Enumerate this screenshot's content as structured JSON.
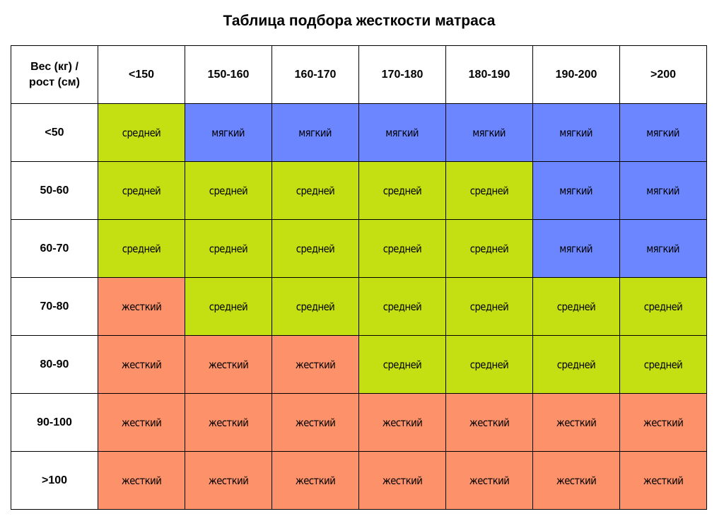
{
  "title": "Таблица подбора жесткости матраса",
  "corner_header": [
    "Вес (кг) /",
    "рост (см)"
  ],
  "columns": [
    "<150",
    "150-160",
    "160-170",
    "170-180",
    "180-190",
    "190-200",
    ">200"
  ],
  "levels": {
    "soft": {
      "label": "мягкий",
      "color": "#6b86ff"
    },
    "medium": {
      "label": "средней",
      "color": "#c5e012"
    },
    "hard": {
      "label": "жесткий",
      "color": "#fd9169"
    }
  },
  "rows": [
    {
      "weight": "<50",
      "cells": [
        "medium",
        "soft",
        "soft",
        "soft",
        "soft",
        "soft",
        "soft"
      ]
    },
    {
      "weight": "50-60",
      "cells": [
        "medium",
        "medium",
        "medium",
        "medium",
        "medium",
        "soft",
        "soft"
      ]
    },
    {
      "weight": "60-70",
      "cells": [
        "medium",
        "medium",
        "medium",
        "medium",
        "medium",
        "soft",
        "soft"
      ]
    },
    {
      "weight": "70-80",
      "cells": [
        "hard",
        "medium",
        "medium",
        "medium",
        "medium",
        "medium",
        "medium"
      ]
    },
    {
      "weight": "80-90",
      "cells": [
        "hard",
        "hard",
        "hard",
        "medium",
        "medium",
        "medium",
        "medium"
      ]
    },
    {
      "weight": "90-100",
      "cells": [
        "hard",
        "hard",
        "hard",
        "hard",
        "hard",
        "hard",
        "hard"
      ]
    },
    {
      "weight": ">100",
      "cells": [
        "hard",
        "hard",
        "hard",
        "hard",
        "hard",
        "hard",
        "hard"
      ]
    }
  ]
}
